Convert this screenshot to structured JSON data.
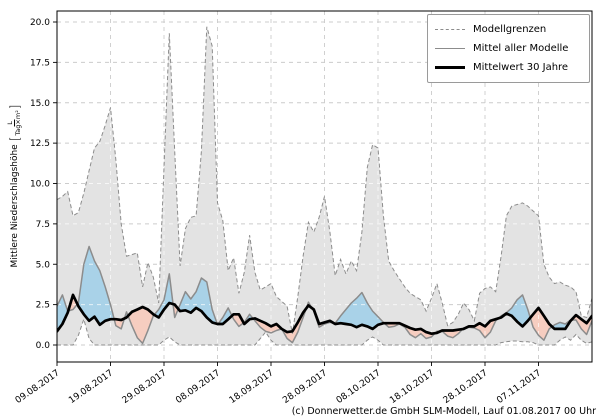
{
  "figure": {
    "footer": "(c) Donnerwetter.de GmbH SLM-Modell, Lauf 01.08.2017 00 Uhr",
    "y_axis_label": {
      "text": "Mittlere Niederschlagshöhe",
      "unit_numerator": "L",
      "unit_denominator": "Tag×m²"
    }
  },
  "legend": {
    "items": [
      {
        "label": "Modellgrenzen",
        "style": "dashed-gray"
      },
      {
        "label": "Mittel aller Modelle",
        "style": "solid-gray"
      },
      {
        "label": "Mittelwert 30 Jahre",
        "style": "thick-black"
      }
    ]
  },
  "chart_data": {
    "type": "line",
    "title": "",
    "xlabel": "",
    "ylabel": "Mittlere Niederschlagshöhe [L/(Tag×m²)]",
    "grid": true,
    "legend_position": "upper right",
    "x_unit": "days since 09.08.2017",
    "xlim": [
      0,
      100
    ],
    "ylim": [
      -1.05,
      20.68
    ],
    "x_tick_days": [
      0,
      10,
      20,
      30,
      40,
      50,
      60,
      70,
      80,
      90
    ],
    "x_tick_labels": [
      "09.08.2017",
      "19.08.2017",
      "29.08.2017",
      "08.09.2017",
      "18.09.2017",
      "28.09.2017",
      "08.10.2017",
      "18.10.2017",
      "28.10.2017",
      "07.11.2017"
    ],
    "y_ticks": [
      0.0,
      2.5,
      5.0,
      7.5,
      10.0,
      12.5,
      15.0,
      17.5,
      20.0
    ],
    "colors": {
      "envelope_fill": "#e3e3e3",
      "envelope_edge": "#8c8c8c",
      "above_fill": "#a9d2e8",
      "below_fill": "#f6cdc0",
      "model_mean_line": "#8c8c8c",
      "mean30_line": "#000000",
      "grid": "#cccccc",
      "frame": "#000000"
    },
    "series": [
      {
        "name": "Modellgrenzen (obere Grenze)",
        "values": [
          9.0,
          9.2,
          9.5,
          8.0,
          8.2,
          9.4,
          10.8,
          12.2,
          12.6,
          13.6,
          14.7,
          11.5,
          7.5,
          5.5,
          5.6,
          5.7,
          3.6,
          5.1,
          4.2,
          2.6,
          11.0,
          19.3,
          12.0,
          4.9,
          7.2,
          7.9,
          8.0,
          12.0,
          19.7,
          18.5,
          8.8,
          7.7,
          4.6,
          5.4,
          3.2,
          4.5,
          6.8,
          4.5,
          3.4,
          3.6,
          3.8,
          3.0,
          2.7,
          2.4,
          0.7,
          3.0,
          5.5,
          7.6,
          7.0,
          7.9,
          9.2,
          7.0,
          4.3,
          5.3,
          4.4,
          5.2,
          4.6,
          7.0,
          11.0,
          12.4,
          12.2,
          8.0,
          5.2,
          4.6,
          4.1,
          3.6,
          3.2,
          3.0,
          2.8,
          2.1,
          2.9,
          3.8,
          2.6,
          1.2,
          1.4,
          1.9,
          2.6,
          2.2,
          1.5,
          3.2,
          3.5,
          3.6,
          3.3,
          5.5,
          8.0,
          8.6,
          8.7,
          8.8,
          8.6,
          8.3,
          8.0,
          5.0,
          4.2,
          3.8,
          3.9,
          3.7,
          3.6,
          3.3,
          1.8,
          1.7,
          2.9
        ]
      },
      {
        "name": "Modellgrenzen (untere Grenze)",
        "values": [
          0,
          0,
          0,
          0,
          0.6,
          1.6,
          0.4,
          0,
          0,
          0,
          0,
          0,
          0,
          0,
          0,
          0,
          0,
          0,
          0,
          0,
          0.3,
          0.5,
          0.2,
          0,
          0,
          0,
          0,
          0,
          0,
          0,
          0,
          0,
          0,
          0,
          0,
          0,
          0,
          0,
          0.4,
          0.8,
          0.3,
          0,
          0,
          0,
          0,
          0,
          0,
          0,
          0,
          0,
          0,
          0,
          0,
          0,
          0,
          0,
          0,
          0,
          0.3,
          0.5,
          0.3,
          0,
          0,
          0,
          0,
          0,
          0,
          0,
          0,
          0,
          0,
          0,
          0,
          0,
          0,
          0,
          0,
          0,
          0,
          0,
          0,
          0,
          0,
          0.15,
          0.2,
          0.25,
          0.25,
          0.2,
          0.2,
          0.15,
          0,
          0,
          0,
          0,
          0.3,
          0.5,
          0.3,
          0.65,
          0.3,
          0.1,
          0.2
        ]
      },
      {
        "name": "Mittel aller Modelle",
        "values": [
          2.4,
          3.1,
          2.1,
          2.2,
          2.6,
          5.0,
          6.1,
          5.2,
          4.6,
          3.6,
          2.5,
          1.2,
          1.0,
          2.05,
          1.2,
          0.45,
          0.1,
          0.9,
          1.8,
          2.2,
          2.8,
          4.4,
          1.7,
          2.5,
          3.3,
          2.85,
          3.3,
          4.15,
          3.9,
          2.2,
          1.25,
          1.7,
          2.3,
          1.6,
          1.15,
          1.4,
          1.9,
          1.5,
          1.1,
          0.85,
          0.75,
          0.9,
          1.0,
          0.4,
          0.15,
          0.8,
          1.7,
          2.65,
          2.1,
          1.1,
          1.3,
          1.4,
          1.35,
          1.8,
          2.2,
          2.6,
          2.9,
          3.25,
          2.6,
          2.1,
          1.75,
          1.4,
          1.1,
          1.15,
          1.3,
          1.1,
          0.65,
          0.45,
          0.7,
          0.4,
          0.5,
          0.85,
          0.85,
          0.55,
          0.45,
          0.7,
          1.05,
          1.1,
          1.05,
          0.9,
          0.45,
          0.8,
          1.5,
          1.8,
          2.0,
          2.3,
          2.8,
          3.1,
          2.2,
          1.1,
          0.6,
          0.3,
          1.0,
          1.25,
          1.4,
          1.3,
          1.55,
          1.55,
          1.0,
          0.65,
          1.5
        ]
      },
      {
        "name": "Mittelwert 30 Jahre",
        "values": [
          0.85,
          1.3,
          2.0,
          3.1,
          2.4,
          1.9,
          1.5,
          1.75,
          1.25,
          1.5,
          1.6,
          1.6,
          1.55,
          1.7,
          2.05,
          2.2,
          2.35,
          2.2,
          1.9,
          1.7,
          2.2,
          2.6,
          2.5,
          2.1,
          2.15,
          2.0,
          2.3,
          2.1,
          1.7,
          1.4,
          1.3,
          1.3,
          1.6,
          1.9,
          1.9,
          1.3,
          1.6,
          1.65,
          1.5,
          1.35,
          1.15,
          1.3,
          1.0,
          0.8,
          0.85,
          1.4,
          2.0,
          2.45,
          2.2,
          1.3,
          1.4,
          1.5,
          1.3,
          1.35,
          1.3,
          1.25,
          1.1,
          1.25,
          1.15,
          1.0,
          1.25,
          1.35,
          1.35,
          1.35,
          1.35,
          1.2,
          1.05,
          0.95,
          1.0,
          0.8,
          0.7,
          0.75,
          0.9,
          0.9,
          0.9,
          0.95,
          1.0,
          1.15,
          1.15,
          1.35,
          1.15,
          1.5,
          1.6,
          1.7,
          1.95,
          1.8,
          1.45,
          1.15,
          1.5,
          1.9,
          2.3,
          1.8,
          1.3,
          1.0,
          1.0,
          1.0,
          1.5,
          1.85,
          1.6,
          1.35,
          1.8
        ]
      }
    ]
  }
}
